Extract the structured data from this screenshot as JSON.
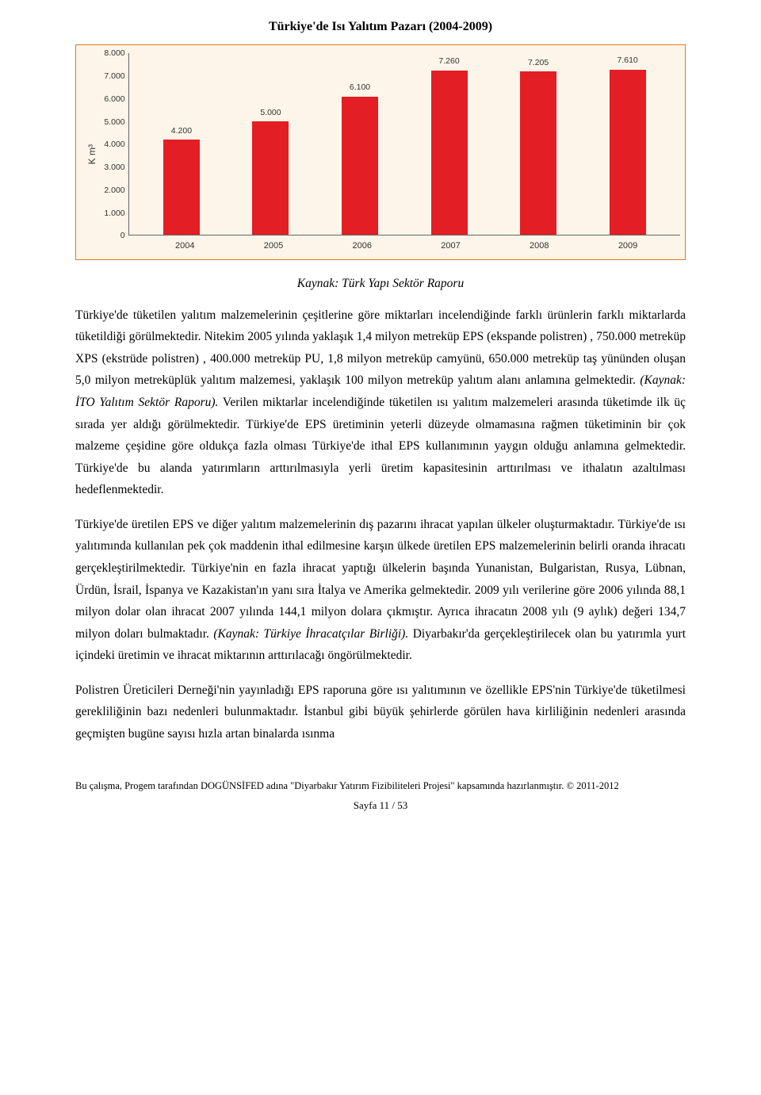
{
  "chart": {
    "title": "Türkiye'de Isı Yalıtım Pazarı (2004-2009)",
    "type": "bar",
    "y_label": "K m³",
    "y_max": 8000,
    "y_ticks": [
      "8.000",
      "7.000",
      "6.000",
      "5.000",
      "4.000",
      "3.000",
      "2.000",
      "1.000",
      "0"
    ],
    "categories": [
      "2004",
      "2005",
      "2006",
      "2007",
      "2008",
      "2009"
    ],
    "values": [
      4200,
      5000,
      6100,
      7260,
      7205,
      7610
    ],
    "value_labels": [
      "4.200",
      "5.000",
      "6.100",
      "7.260",
      "7.205",
      "7.610"
    ],
    "bar_color": "#e31e24",
    "background_color": "#fdf5e9",
    "border_color": "#e77817",
    "axis_color": "#666666",
    "tick_font_size": 10.5
  },
  "source": "Kaynak: Türk Yapı Sektör Raporu",
  "paragraphs": {
    "p1_a": "Türkiye'de tüketilen yalıtım malzemelerinin çeşitlerine göre miktarları incelendiğinde farklı ürünlerin farklı miktarlarda tüketildiği görülmektedir. Nitekim 2005 yılında yaklaşık 1,4 milyon metreküp EPS (ekspande polistren) , 750.000 metreküp XPS (ekstrüde polistren) , 400.000 metreküp PU, 1,8 milyon metreküp camyünü, 650.000 metreküp taş yününden oluşan 5,0 milyon metreküplük yalıtım malzemesi, yaklaşık 100 milyon metreküp yalıtım alanı anlamına gelmektedir. ",
    "p1_src": "(Kaynak: İTO Yalıtım Sektör Raporu).",
    "p1_b": " Verilen miktarlar incelendiğinde tüketilen ısı yalıtım malzemeleri arasında tüketimde ilk üç sırada yer aldığı görülmektedir. Türkiye'de EPS üretiminin yeterli düzeyde olmamasına rağmen tüketiminin bir çok malzeme çeşidine göre oldukça fazla olması Türkiye'de ithal EPS kullanımının yaygın olduğu anlamına gelmektedir. Türkiye'de bu alanda yatırımların arttırılmasıyla yerli üretim kapasitesinin arttırılması ve ithalatın azaltılması hedeflenmektedir.",
    "p2_a": "Türkiye'de üretilen EPS ve diğer yalıtım malzemelerinin dış pazarını ihracat yapılan ülkeler oluşturmaktadır. Türkiye'de ısı yalıtımında kullanılan pek çok maddenin ithal edilmesine karşın ülkede üretilen EPS malzemelerinin belirli oranda ihracatı gerçekleştirilmektedir. Türkiye'nin en fazla ihracat yaptığı ülkelerin başında Yunanistan, Bulgaristan, Rusya, Lübnan, Ürdün, İsrail, İspanya ve Kazakistan'ın yanı sıra İtalya ve Amerika gelmektedir. 2009 yılı verilerine göre 2006 yılında 88,1 milyon dolar olan ihracat 2007 yılında 144,1 milyon dolara çıkmıştır. Ayrıca ihracatın 2008 yılı (9 aylık) değeri 134,7 milyon doları bulmaktadır. ",
    "p2_src": "(Kaynak: Türkiye İhracatçılar Birliği).",
    "p2_b": " Diyarbakır'da gerçekleştirilecek olan bu yatırımla yurt içindeki üretimin ve ihracat miktarının arttırılacağı öngörülmektedir.",
    "p3": "Polistren Üreticileri Derneği'nin yayınladığı EPS raporuna göre ısı yalıtımının ve özellikle EPS'nin Türkiye'de tüketilmesi gerekliliğinin bazı nedenleri bulunmaktadır. İstanbul gibi büyük şehirlerde görülen hava kirliliğinin nedenleri arasında geçmişten bugüne sayısı hızla artan binalarda ısınma"
  },
  "footer": {
    "line_a": "Bu çalışma, Progem tarafından DOGÜNSİFED adına \"Diyarbakır Yatırım Fizibiliteleri Projesi\" kapsamında hazırlanmıştır. ",
    "copyright": "© 2011-2012",
    "page": "Sayfa 11 / 53"
  }
}
